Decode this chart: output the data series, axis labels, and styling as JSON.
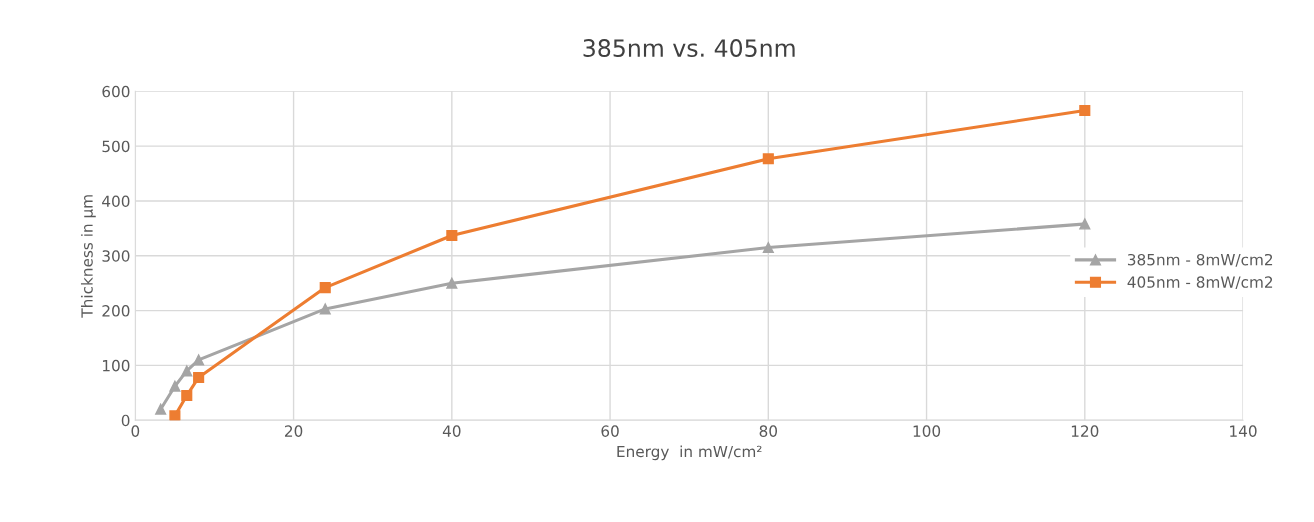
{
  "chart_data": {
    "type": "line",
    "title": "385nm vs. 405nm",
    "xlabel": "Energy  in mW/cm²",
    "ylabel": "Thickness in µm",
    "series": [
      {
        "name": "385nm - 8mW/cm2",
        "color": "#a5a5a5",
        "marker": "triangle",
        "x": [
          3.2,
          5,
          6.5,
          8,
          24,
          40,
          80,
          120
        ],
        "values": [
          20,
          62,
          90,
          110,
          203,
          250,
          315,
          358
        ]
      },
      {
        "name": "405nm - 8mW/cm2",
        "color": "#ed7d31",
        "marker": "square",
        "x": [
          5,
          6.5,
          8,
          24,
          40,
          80,
          120
        ],
        "values": [
          8,
          45,
          78,
          242,
          337,
          477,
          565
        ]
      }
    ],
    "xlim": [
      0,
      140
    ],
    "xticks": [
      0,
      20,
      40,
      60,
      80,
      100,
      120,
      140
    ],
    "ylim": [
      0,
      600
    ],
    "yticks": [
      0,
      100,
      200,
      300,
      400,
      500,
      600
    ],
    "grid": true,
    "legend": "right",
    "line_style": "solid"
  }
}
